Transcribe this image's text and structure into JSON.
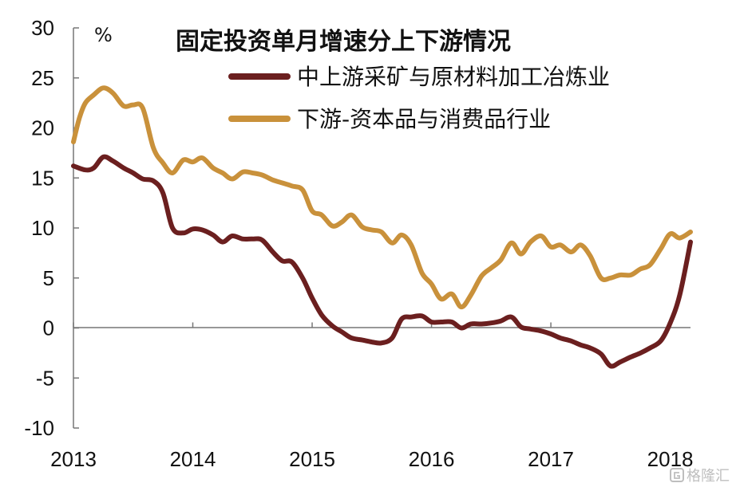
{
  "chart_data": {
    "type": "line",
    "title": "固定投资单月增速分上下游情况",
    "unit_label": "%",
    "ylabel": "",
    "xlabel": "",
    "ylim": [
      -10,
      30
    ],
    "yticks": [
      -10,
      -5,
      0,
      5,
      10,
      15,
      20,
      25,
      30
    ],
    "xlim": [
      2013.0,
      2018.17
    ],
    "xticks": [
      2013,
      2014,
      2015,
      2016,
      2017,
      2018
    ],
    "grid": false,
    "legend_position": "top-right",
    "series": [
      {
        "name": "中上游采矿与原材料加工冶炼业",
        "color": "#6b1f1f",
        "points": [
          [
            2013.0,
            16.2
          ],
          [
            2013.1,
            15.8
          ],
          [
            2013.17,
            16.0
          ],
          [
            2013.25,
            17.1
          ],
          [
            2013.33,
            16.7
          ],
          [
            2013.42,
            16.0
          ],
          [
            2013.5,
            15.5
          ],
          [
            2013.58,
            14.9
          ],
          [
            2013.67,
            14.7
          ],
          [
            2013.75,
            13.5
          ],
          [
            2013.83,
            10.0
          ],
          [
            2013.92,
            9.5
          ],
          [
            2014.0,
            9.9
          ],
          [
            2014.08,
            9.8
          ],
          [
            2014.17,
            9.3
          ],
          [
            2014.25,
            8.6
          ],
          [
            2014.33,
            9.2
          ],
          [
            2014.42,
            8.9
          ],
          [
            2014.5,
            8.9
          ],
          [
            2014.58,
            8.8
          ],
          [
            2014.67,
            7.6
          ],
          [
            2014.75,
            6.7
          ],
          [
            2014.83,
            6.6
          ],
          [
            2014.92,
            5.0
          ],
          [
            2015.0,
            3.0
          ],
          [
            2015.08,
            1.3
          ],
          [
            2015.17,
            0.2
          ],
          [
            2015.25,
            -0.4
          ],
          [
            2015.33,
            -1.0
          ],
          [
            2015.42,
            -1.2
          ],
          [
            2015.5,
            -1.4
          ],
          [
            2015.58,
            -1.5
          ],
          [
            2015.67,
            -1.0
          ],
          [
            2015.75,
            0.9
          ],
          [
            2015.83,
            1.1
          ],
          [
            2015.92,
            1.2
          ],
          [
            2016.0,
            0.6
          ],
          [
            2016.08,
            0.6
          ],
          [
            2016.17,
            0.6
          ],
          [
            2016.25,
            0.0
          ],
          [
            2016.33,
            0.4
          ],
          [
            2016.42,
            0.4
          ],
          [
            2016.5,
            0.5
          ],
          [
            2016.58,
            0.7
          ],
          [
            2016.67,
            1.1
          ],
          [
            2016.75,
            0.1
          ],
          [
            2016.83,
            -0.1
          ],
          [
            2016.92,
            -0.3
          ],
          [
            2017.0,
            -0.6
          ],
          [
            2017.08,
            -1.0
          ],
          [
            2017.17,
            -1.3
          ],
          [
            2017.25,
            -1.7
          ],
          [
            2017.33,
            -2.0
          ],
          [
            2017.42,
            -2.6
          ],
          [
            2017.5,
            -3.8
          ],
          [
            2017.58,
            -3.4
          ],
          [
            2017.67,
            -2.9
          ],
          [
            2017.75,
            -2.5
          ],
          [
            2017.83,
            -2.0
          ],
          [
            2017.92,
            -1.3
          ],
          [
            2018.0,
            0.5
          ],
          [
            2018.08,
            3.3
          ],
          [
            2018.17,
            8.6
          ]
        ]
      },
      {
        "name": "下游-资本品与消费品行业",
        "color": "#c9913b",
        "points": [
          [
            2013.0,
            18.6
          ],
          [
            2013.05,
            21.0
          ],
          [
            2013.1,
            22.5
          ],
          [
            2013.17,
            23.3
          ],
          [
            2013.25,
            24.0
          ],
          [
            2013.33,
            23.5
          ],
          [
            2013.42,
            22.2
          ],
          [
            2013.5,
            22.3
          ],
          [
            2013.58,
            22.0
          ],
          [
            2013.67,
            18.0
          ],
          [
            2013.75,
            16.5
          ],
          [
            2013.83,
            15.5
          ],
          [
            2013.92,
            16.8
          ],
          [
            2014.0,
            16.6
          ],
          [
            2014.08,
            17.0
          ],
          [
            2014.17,
            16.0
          ],
          [
            2014.25,
            15.5
          ],
          [
            2014.33,
            14.9
          ],
          [
            2014.42,
            15.6
          ],
          [
            2014.5,
            15.5
          ],
          [
            2014.58,
            15.3
          ],
          [
            2014.67,
            14.8
          ],
          [
            2014.75,
            14.5
          ],
          [
            2014.83,
            14.2
          ],
          [
            2014.92,
            13.8
          ],
          [
            2015.0,
            11.7
          ],
          [
            2015.08,
            11.3
          ],
          [
            2015.17,
            10.2
          ],
          [
            2015.25,
            10.6
          ],
          [
            2015.33,
            11.3
          ],
          [
            2015.42,
            10.1
          ],
          [
            2015.5,
            9.8
          ],
          [
            2015.58,
            9.6
          ],
          [
            2015.67,
            8.5
          ],
          [
            2015.75,
            9.3
          ],
          [
            2015.83,
            8.3
          ],
          [
            2015.92,
            5.5
          ],
          [
            2016.0,
            4.4
          ],
          [
            2016.08,
            2.9
          ],
          [
            2016.17,
            3.4
          ],
          [
            2016.25,
            2.1
          ],
          [
            2016.33,
            3.3
          ],
          [
            2016.42,
            5.2
          ],
          [
            2016.5,
            6.0
          ],
          [
            2016.58,
            6.8
          ],
          [
            2016.67,
            8.5
          ],
          [
            2016.75,
            7.4
          ],
          [
            2016.83,
            8.6
          ],
          [
            2016.92,
            9.2
          ],
          [
            2017.0,
            8.1
          ],
          [
            2017.08,
            8.3
          ],
          [
            2017.17,
            7.6
          ],
          [
            2017.25,
            8.3
          ],
          [
            2017.33,
            7.2
          ],
          [
            2017.42,
            5.0
          ],
          [
            2017.5,
            5.0
          ],
          [
            2017.58,
            5.3
          ],
          [
            2017.67,
            5.3
          ],
          [
            2017.75,
            5.9
          ],
          [
            2017.83,
            6.3
          ],
          [
            2017.92,
            7.9
          ],
          [
            2018.0,
            9.4
          ],
          [
            2018.08,
            9.0
          ],
          [
            2018.17,
            9.6
          ]
        ]
      }
    ]
  },
  "watermark": {
    "icon": "gelonghui-logo-icon",
    "text": "格隆汇"
  }
}
